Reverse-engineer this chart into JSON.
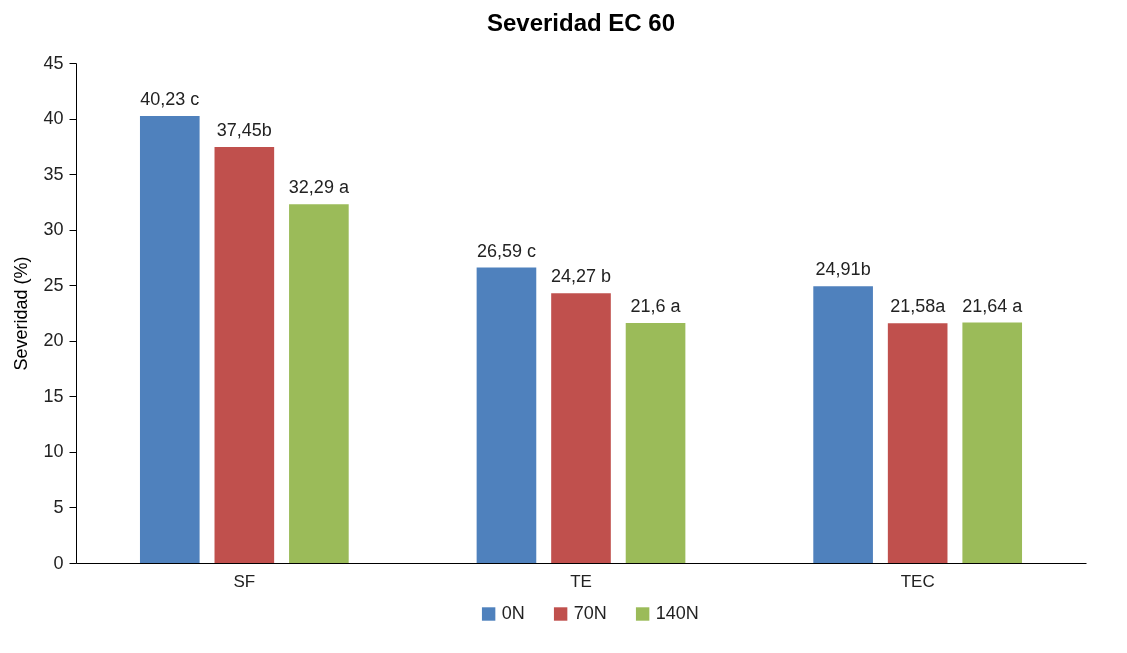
{
  "chart_data": {
    "type": "bar",
    "title": "Severidad EC 60",
    "ylabel": "Severidad (%)",
    "categories": [
      "SF",
      "TE",
      "TEC"
    ],
    "series": [
      {
        "name": "0N",
        "color": "#4f81bd",
        "values": [
          40.23,
          26.59,
          24.91
        ],
        "value_labels": [
          "40,23 c",
          "26,59 c",
          "24,91b"
        ]
      },
      {
        "name": "70N",
        "color": "#c0504d",
        "values": [
          37.45,
          24.27,
          21.58
        ],
        "value_labels": [
          "37,45b",
          "24,27 b",
          "21,58a"
        ]
      },
      {
        "name": "140N",
        "color": "#9bbb59",
        "values": [
          32.29,
          21.6,
          21.64
        ],
        "value_labels": [
          "32,29 a",
          "21,6 a",
          "21,64 a"
        ]
      }
    ],
    "ylim": [
      0,
      45
    ],
    "yticks": [
      0,
      5,
      10,
      15,
      20,
      25,
      30,
      35,
      40,
      45
    ],
    "grid": false,
    "legend": "bottom"
  }
}
